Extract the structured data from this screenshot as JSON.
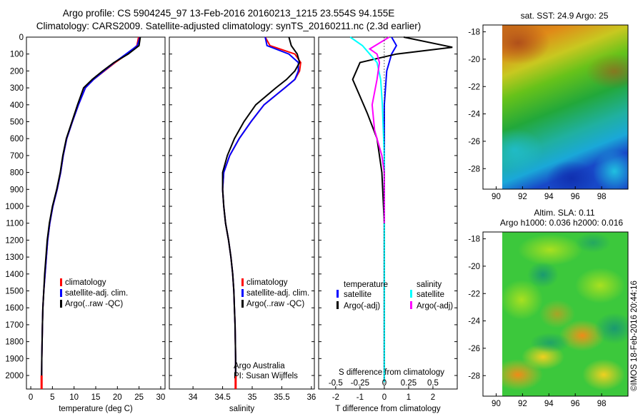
{
  "title": {
    "line1": "Argo profile: CS 5904245_97 13-Feb-2016 20160213_1215 23.554S 94.155E",
    "line2": "Climatology: CARS2009. Satellite-adjusted climatology: synTS_20160211.nc (2.3d earlier)"
  },
  "colors": {
    "climatology": "#ff0000",
    "satellite_adj": "#0000ff",
    "argo": "#000000",
    "argo_salinity": "#ff00ff",
    "satellite_salinity": "#00ffff"
  },
  "chart_data": [
    {
      "id": "temperature_panel",
      "type": "line",
      "xlabel": "temperature (deg C)",
      "ylabel": "",
      "xlim": [
        -1,
        31
      ],
      "ylim": [
        2080,
        0
      ],
      "xticks": [
        0,
        5,
        10,
        15,
        20,
        25,
        30
      ],
      "yticks": [
        0,
        100,
        200,
        300,
        400,
        500,
        600,
        700,
        800,
        900,
        1000,
        1100,
        1200,
        1300,
        1400,
        1500,
        1600,
        1700,
        1800,
        1900,
        2000
      ],
      "legend": [
        "climatology",
        "satellite-adj. clim.",
        "Argo(..raw -QC)"
      ],
      "series": [
        {
          "name": "climatology",
          "color": "#ff0000",
          "x": [
            24.9,
            24.5,
            22.3,
            19.5,
            17.0,
            14.5,
            12.6,
            11.0,
            9.6,
            8.3,
            7.5,
            6.9,
            6.1,
            5.1,
            4.4,
            3.9,
            3.6,
            3.3,
            3.0,
            2.8,
            2.7,
            2.55,
            2.5
          ],
          "y": [
            0,
            50,
            100,
            150,
            200,
            250,
            300,
            400,
            500,
            600,
            700,
            800,
            900,
            1000,
            1100,
            1200,
            1300,
            1400,
            1500,
            1600,
            1700,
            1900,
            2040
          ]
        },
        {
          "name": "satellite-adj. clim.",
          "color": "#0000ff",
          "x": [
            25.2,
            24.6,
            22.0,
            19.3,
            16.9,
            14.5,
            12.6,
            11.0,
            9.6,
            8.3,
            7.5,
            6.9,
            6.1,
            5.1,
            4.4,
            3.9,
            3.6,
            3.3,
            3.0,
            2.8,
            2.7,
            2.55,
            2.5
          ],
          "y": [
            0,
            50,
            100,
            150,
            200,
            250,
            300,
            400,
            500,
            600,
            700,
            800,
            900,
            1000,
            1100,
            1200,
            1300,
            1400,
            1500,
            1600,
            1700,
            1900,
            2020
          ]
        },
        {
          "name": "Argo(..raw -QC)",
          "color": "#000000",
          "x": [
            25.3,
            25.0,
            22.5,
            19.2,
            16.6,
            14.2,
            12.2,
            10.8,
            9.5,
            8.2,
            7.4,
            6.8,
            6.0,
            5.0,
            4.3,
            3.8,
            3.5,
            3.2,
            3.0,
            2.8,
            2.7,
            2.55,
            2.5
          ],
          "y": [
            0,
            50,
            100,
            150,
            200,
            250,
            300,
            400,
            500,
            600,
            700,
            800,
            900,
            1000,
            1100,
            1200,
            1300,
            1400,
            1500,
            1600,
            1700,
            1900,
            2030
          ]
        }
      ]
    },
    {
      "id": "salinity_panel",
      "type": "line",
      "xlabel": "salinity",
      "ylabel": "",
      "xlim": [
        33.6,
        36.05
      ],
      "ylim": [
        2080,
        0
      ],
      "xticks": [
        34,
        34.5,
        35,
        35.5,
        36
      ],
      "legend": [
        "climatology",
        "satellite-adj. clim.",
        "Argo(..raw -QC)"
      ],
      "annotation": [
        "Argo Australia",
        "PI: Susan Wijffels"
      ],
      "series": [
        {
          "name": "climatology",
          "color": "#ff0000",
          "x": [
            35.22,
            35.3,
            35.72,
            35.82,
            35.8,
            35.72,
            35.55,
            35.2,
            34.98,
            34.78,
            34.62,
            34.52,
            34.5,
            34.52,
            34.55,
            34.6,
            34.64,
            34.67,
            34.69,
            34.7,
            34.71,
            34.72,
            34.72
          ],
          "y": [
            0,
            50,
            100,
            150,
            200,
            250,
            300,
            400,
            500,
            600,
            700,
            800,
            900,
            1000,
            1100,
            1200,
            1300,
            1400,
            1500,
            1600,
            1700,
            1900,
            2040
          ]
        },
        {
          "name": "satellite-adj. clim.",
          "color": "#0000ff",
          "x": [
            35.22,
            35.25,
            35.62,
            35.78,
            35.78,
            35.72,
            35.55,
            35.2,
            34.98,
            34.78,
            34.62,
            34.52,
            34.5,
            34.52,
            34.55,
            34.6,
            34.64,
            34.67,
            34.69,
            34.7,
            34.71,
            34.72,
            34.72
          ],
          "y": [
            0,
            50,
            100,
            150,
            200,
            250,
            300,
            400,
            500,
            600,
            700,
            800,
            900,
            1000,
            1100,
            1200,
            1300,
            1400,
            1500,
            1600,
            1700,
            1900,
            2020
          ]
        },
        {
          "name": "Argo(..raw -QC)",
          "color": "#000000",
          "x": [
            35.62,
            35.66,
            35.76,
            35.8,
            35.72,
            35.58,
            35.4,
            35.06,
            34.86,
            34.7,
            34.58,
            34.5,
            34.5,
            34.52,
            34.55,
            34.6,
            34.64,
            34.67,
            34.69,
            34.7,
            34.71,
            34.72,
            34.72
          ],
          "y": [
            0,
            50,
            100,
            150,
            200,
            250,
            300,
            400,
            500,
            600,
            700,
            800,
            900,
            1000,
            1100,
            1200,
            1300,
            1400,
            1500,
            1600,
            1700,
            1900,
            2030
          ]
        }
      ]
    },
    {
      "id": "difference_panel",
      "type": "line",
      "xlabel": "T difference from climatology",
      "top_label": "S difference from climatology",
      "ylabel": "",
      "xlim": [
        -2.7,
        3.0
      ],
      "ylim": [
        2080,
        0
      ],
      "xticks": [
        -2,
        -1,
        0,
        1,
        2
      ],
      "top_xticks": [
        "-0.5",
        "-0.25",
        "0",
        "0.25",
        "0.5"
      ],
      "legend": {
        "temperature": [
          "satellite",
          "Argo(-adj)"
        ],
        "salinity": [
          "satellite",
          "Argo(-adj)"
        ],
        "temperature_header": "temperature",
        "salinity_header": "salinity"
      },
      "series": [
        {
          "name": "temperature satellite",
          "color": "#0000ff",
          "x": [
            0.3,
            0.5,
            0.3,
            0.2,
            0.1,
            0.05,
            0,
            0,
            0,
            0,
            0,
            0
          ],
          "y": [
            0,
            50,
            100,
            150,
            200,
            300,
            400,
            600,
            800,
            1200,
            1600,
            2040
          ]
        },
        {
          "name": "temperature Argo(-adj)",
          "color": "#000000",
          "x": [
            0.8,
            2.8,
            0.5,
            -1.0,
            -1.3,
            -1.0,
            -0.7,
            -0.3,
            -0.1,
            0.0,
            0.0,
            0.0
          ],
          "y": [
            0,
            60,
            100,
            150,
            250,
            350,
            450,
            600,
            800,
            1100,
            1500,
            2040
          ]
        },
        {
          "name": "salinity satellite",
          "color": "#00ffff",
          "x": [
            -1.4,
            -0.9,
            -0.6,
            -0.3,
            -0.15,
            -0.08,
            -0.04,
            0,
            0,
            0,
            0
          ],
          "y": [
            0,
            50,
            100,
            150,
            250,
            400,
            550,
            700,
            900,
            1400,
            2040
          ]
        },
        {
          "name": "salinity Argo(-adj)",
          "color": "#ff00ff",
          "x": [
            0.2,
            -0.6,
            -0.3,
            -0.2,
            -0.3,
            -0.5,
            -0.4,
            -0.1,
            0,
            0,
            0
          ],
          "y": [
            0,
            70,
            100,
            150,
            250,
            400,
            550,
            700,
            800,
            1000,
            1100
          ]
        }
      ]
    },
    {
      "id": "sst_map",
      "type": "heatmap",
      "title": "sat. SST: 24.9  Argo: 25",
      "xticks": [
        "90",
        "92",
        "94",
        "96",
        "98"
      ],
      "yticks": [
        "-18",
        "-20",
        "-22",
        "-24",
        "-26",
        "-28"
      ],
      "xlim": [
        89,
        100
      ],
      "ylim": [
        -29.5,
        -17.5
      ]
    },
    {
      "id": "sla_map",
      "type": "heatmap",
      "title_lines": [
        "Altim. SLA: 0.11",
        "Argo h1000: 0.036 h2000: 0.016"
      ],
      "xticks": [
        "90",
        "92",
        "94",
        "96",
        "98"
      ],
      "yticks": [
        "-18",
        "-20",
        "-22",
        "-24",
        "-26",
        "-28"
      ],
      "xlim": [
        89,
        100
      ],
      "ylim": [
        -29.5,
        -17.5
      ]
    }
  ],
  "credit": "©IMOS 18-Feb-2016 20:44:16"
}
